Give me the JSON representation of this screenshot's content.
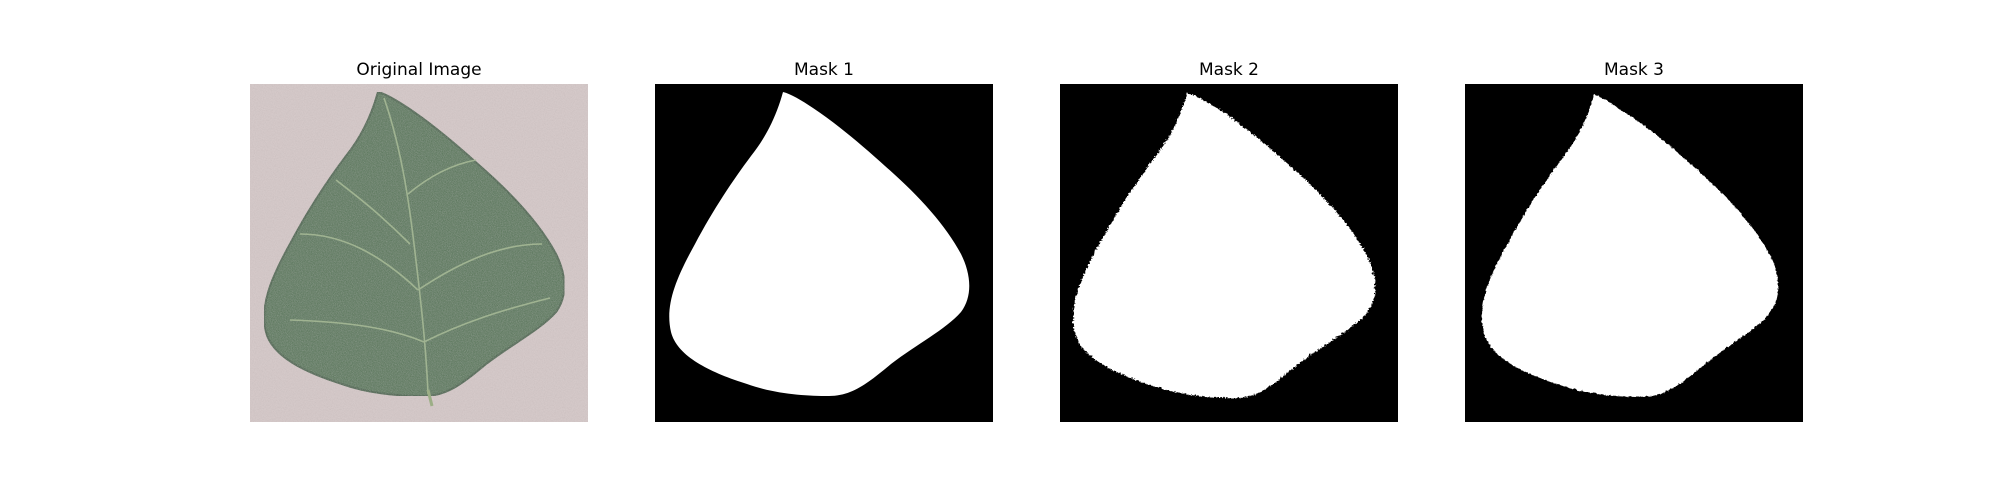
{
  "figure": {
    "panels": [
      {
        "title": "Original Image",
        "kind": "photo",
        "subject": "leaf-photo"
      },
      {
        "title": "Mask 1",
        "kind": "mask",
        "subject": "leaf-mask"
      },
      {
        "title": "Mask 2",
        "kind": "mask",
        "subject": "leaf-mask"
      },
      {
        "title": "Mask 3",
        "kind": "mask",
        "subject": "leaf-mask"
      }
    ],
    "colors": {
      "background": "#d8cccc",
      "leaf": "#4f7050",
      "leaf_dark": "#3b5a3e",
      "vein": "#a9bc98",
      "mask_bg": "#000000",
      "mask_fg": "#ffffff"
    }
  }
}
